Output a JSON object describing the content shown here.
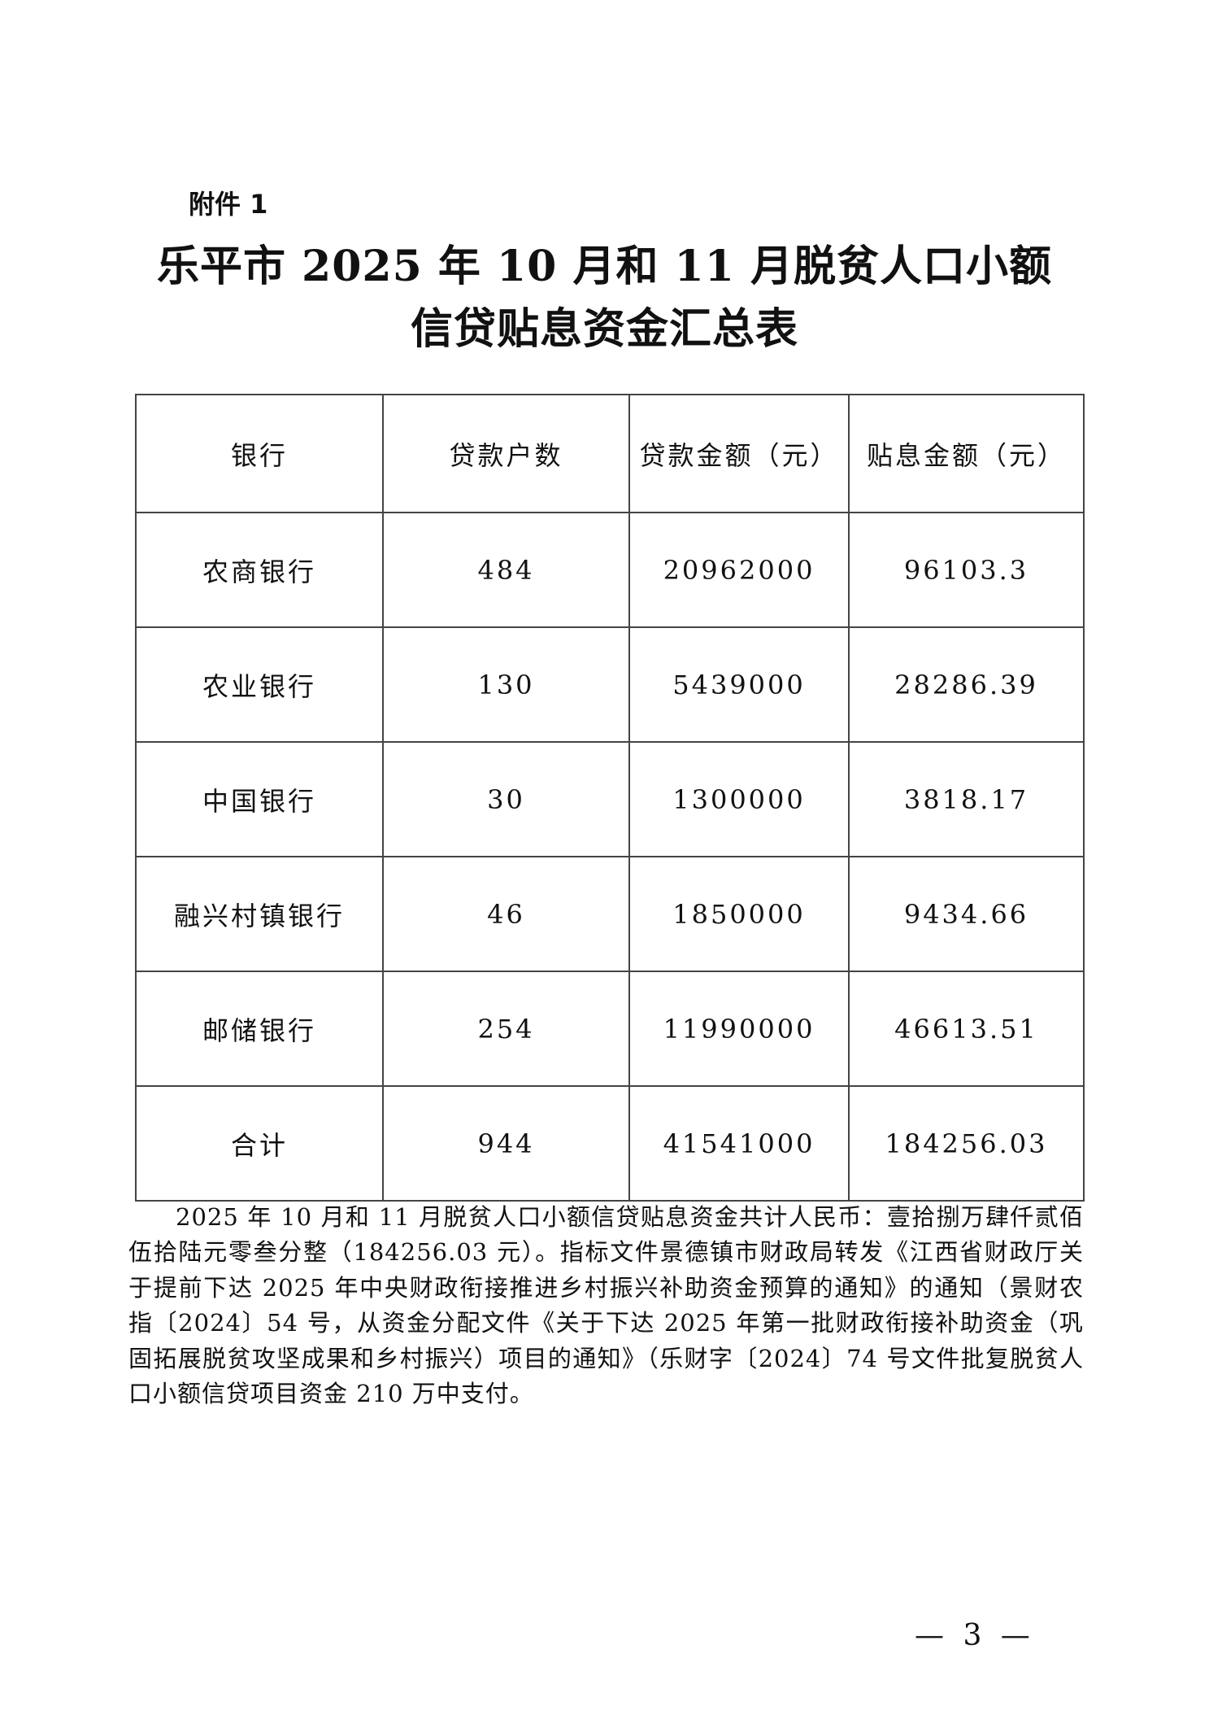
{
  "annex_label": "附件 1",
  "title_line1": "乐平市 2025 年 10 月和 11 月脱贫人口小额",
  "title_line2": "信贷贴息资金汇总表",
  "table": {
    "headers": [
      "银行",
      "贷款户数",
      "贷款金额（元）",
      "贴息金额（元）"
    ],
    "rows": [
      [
        "农商银行",
        "484",
        "20962000",
        "96103.3"
      ],
      [
        "农业银行",
        "130",
        "5439000",
        "28286.39"
      ],
      [
        "中国银行",
        "30",
        "1300000",
        "3818.17"
      ],
      [
        "融兴村镇银行",
        "46",
        "1850000",
        "9434.66"
      ],
      [
        "邮储银行",
        "254",
        "11990000",
        "46613.51"
      ],
      [
        "合计",
        "944",
        "41541000",
        "184256.03"
      ]
    ]
  },
  "note": "2025 年 10 月和 11 月脱贫人口小额信贷贴息资金共计人民币：壹拾捌万肆仟贰佰伍拾陆元零叁分整（184256.03 元）。指标文件景德镇市财政局转发《江西省财政厅关于提前下达 2025 年中央财政衔接推进乡村振兴补助资金预算的通知》的通知（景财农指〔2024〕54 号，从资金分配文件《关于下达 2025 年第一批财政衔接补助资金（巩固拓展脱贫攻坚成果和乡村振兴）项目的通知》（乐财字〔2024〕74 号文件批复脱贫人口小额信贷项目资金 210 万中支付。",
  "page_number": "— 3 —"
}
